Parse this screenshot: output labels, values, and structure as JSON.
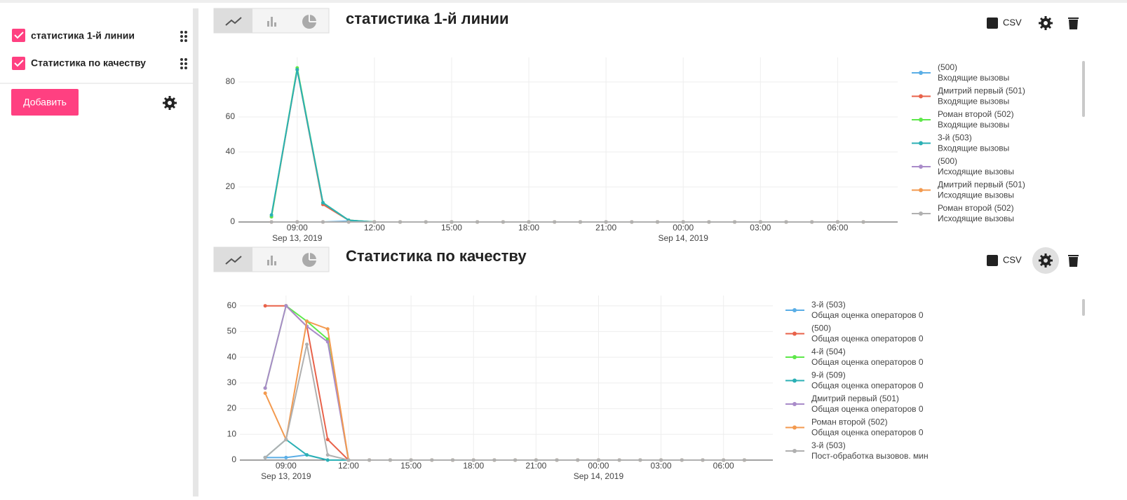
{
  "sidebar": {
    "items": [
      "статистика 1-й линии",
      "Статистика по качеству"
    ],
    "add_button": "Добавить"
  },
  "panels": [
    {
      "csv": "CSV"
    },
    {
      "csv": "CSV"
    }
  ],
  "chart_data": [
    {
      "type": "line",
      "title": "статистика 1-й линии",
      "x": [
        "2019-09-13T08:00",
        "2019-09-13T09:00",
        "2019-09-13T10:00",
        "2019-09-13T11:00",
        "2019-09-13T12:00",
        "2019-09-13T13:00",
        "2019-09-13T14:00",
        "2019-09-13T15:00",
        "2019-09-13T16:00",
        "2019-09-13T17:00",
        "2019-09-13T18:00",
        "2019-09-13T19:00",
        "2019-09-13T20:00",
        "2019-09-13T21:00",
        "2019-09-13T22:00",
        "2019-09-13T23:00",
        "2019-09-14T00:00",
        "2019-09-14T01:00",
        "2019-09-14T02:00",
        "2019-09-14T03:00",
        "2019-09-14T04:00",
        "2019-09-14T05:00",
        "2019-09-14T06:00",
        "2019-09-14T07:00"
      ],
      "xlim": [
        "2019-09-13T06:43",
        "2019-09-14T08:20"
      ],
      "xticks": [
        {
          "value": "2019-09-13T09:00",
          "label": "09:00"
        },
        {
          "value": "2019-09-13T12:00",
          "label": "12:00"
        },
        {
          "value": "2019-09-13T15:00",
          "label": "15:00"
        },
        {
          "value": "2019-09-13T18:00",
          "label": "18:00"
        },
        {
          "value": "2019-09-13T21:00",
          "label": "21:00"
        },
        {
          "value": "2019-09-14T00:00",
          "label": "00:00"
        },
        {
          "value": "2019-09-14T03:00",
          "label": "03:00"
        },
        {
          "value": "2019-09-14T06:00",
          "label": "06:00"
        }
      ],
      "xtick_dates": [
        {
          "value": "2019-09-13T09:00",
          "label": "Sep 13, 2019"
        },
        {
          "value": "2019-09-14T00:00",
          "label": "Sep 14, 2019"
        }
      ],
      "ylim": [
        0,
        94
      ],
      "yticks": [
        0,
        20,
        40,
        60,
        80
      ],
      "grid": true,
      "series": [
        {
          "name": "(500)",
          "metric": "Входящие вызовы",
          "color": "#5aaee6",
          "values": [
            0,
            0,
            0,
            0.5,
            0,
            0,
            0,
            0,
            0,
            0,
            0,
            0,
            0,
            0,
            0,
            0,
            0,
            0,
            0,
            0,
            0,
            0,
            0,
            0
          ]
        },
        {
          "name": "Дмитрий первый (501)",
          "metric": "Входящие вызовы",
          "color": "#e8624a",
          "values": [
            3,
            87,
            10,
            1,
            0,
            0,
            0,
            0,
            0,
            0,
            0,
            0,
            0,
            0,
            0,
            0,
            0,
            0,
            0,
            0,
            0,
            0,
            0,
            0
          ]
        },
        {
          "name": "Роман второй (502)",
          "metric": "Входящие вызовы",
          "color": "#5ee84a",
          "values": [
            3,
            88,
            11,
            1,
            0,
            0,
            0,
            0,
            0,
            0,
            0,
            0,
            0,
            0,
            0,
            0,
            0,
            0,
            0,
            0,
            0,
            0,
            0,
            0
          ]
        },
        {
          "name": "3-й (503)",
          "metric": "Входящие вызовы",
          "color": "#2bb0b5",
          "values": [
            4,
            87,
            11,
            1,
            0,
            0,
            0,
            0,
            0,
            0,
            0,
            0,
            0,
            0,
            0,
            0,
            0,
            0,
            0,
            0,
            0,
            0,
            0,
            0
          ]
        },
        {
          "name": "(500)",
          "metric": "Исходящие вызовы",
          "color": "#a98bc9",
          "values": [
            0,
            0,
            0,
            0,
            0,
            0,
            0,
            0,
            0,
            0,
            0,
            0,
            0,
            0,
            0,
            0,
            0,
            0,
            0,
            0,
            0,
            0,
            0,
            0
          ]
        },
        {
          "name": "Дмитрий первый (501)",
          "metric": "Исходящие вызовы",
          "color": "#f39a4f",
          "values": [
            0,
            0,
            0,
            0,
            0,
            0,
            0,
            0,
            0,
            0,
            0,
            0,
            0,
            0,
            0,
            0,
            0,
            0,
            0,
            0,
            0,
            0,
            0,
            0
          ]
        },
        {
          "name": "Роман второй (502)",
          "metric": "Исходящие вызовы",
          "color": "#b0b0b0",
          "values": [
            0,
            0,
            0,
            0,
            0,
            0,
            0,
            0,
            0,
            0,
            0,
            0,
            0,
            0,
            0,
            0,
            0,
            0,
            0,
            0,
            0,
            0,
            0,
            0
          ]
        }
      ]
    },
    {
      "type": "line",
      "title": "Статистика по качеству",
      "x": [
        "2019-09-13T08:00",
        "2019-09-13T09:00",
        "2019-09-13T10:00",
        "2019-09-13T11:00",
        "2019-09-13T12:00",
        "2019-09-13T13:00",
        "2019-09-13T14:00",
        "2019-09-13T15:00",
        "2019-09-13T16:00",
        "2019-09-13T17:00",
        "2019-09-13T18:00",
        "2019-09-13T19:00",
        "2019-09-13T20:00",
        "2019-09-13T21:00",
        "2019-09-13T22:00",
        "2019-09-13T23:00",
        "2019-09-14T00:00",
        "2019-09-14T01:00",
        "2019-09-14T02:00",
        "2019-09-14T03:00",
        "2019-09-14T04:00",
        "2019-09-14T05:00",
        "2019-09-14T06:00",
        "2019-09-14T07:00"
      ],
      "xlim": [
        "2019-09-13T06:47",
        "2019-09-14T08:22"
      ],
      "xticks": [
        {
          "value": "2019-09-13T09:00",
          "label": "09:00"
        },
        {
          "value": "2019-09-13T12:00",
          "label": "12:00"
        },
        {
          "value": "2019-09-13T15:00",
          "label": "15:00"
        },
        {
          "value": "2019-09-13T18:00",
          "label": "18:00"
        },
        {
          "value": "2019-09-13T21:00",
          "label": "21:00"
        },
        {
          "value": "2019-09-14T00:00",
          "label": "00:00"
        },
        {
          "value": "2019-09-14T03:00",
          "label": "03:00"
        },
        {
          "value": "2019-09-14T06:00",
          "label": "06:00"
        }
      ],
      "xtick_dates": [
        {
          "value": "2019-09-13T09:00",
          "label": "Sep 13, 2019"
        },
        {
          "value": "2019-09-14T00:00",
          "label": "Sep 14, 2019"
        }
      ],
      "ylim": [
        0,
        64
      ],
      "yticks": [
        0,
        10,
        20,
        30,
        40,
        50,
        60
      ],
      "grid": true,
      "series": [
        {
          "name": "3-й (503)",
          "metric": "Общая оценка операторов 0",
          "color": "#5aaee6",
          "values": [
            1,
            1,
            2,
            0,
            0,
            0,
            0,
            0,
            0,
            0,
            0,
            0,
            0,
            0,
            0,
            0,
            0,
            0,
            0,
            0,
            0,
            0,
            0,
            0
          ]
        },
        {
          "name": "(500)",
          "metric": "Общая оценка операторов 0",
          "color": "#e8624a",
          "values": [
            60,
            60,
            52,
            8,
            0,
            0,
            0,
            0,
            0,
            0,
            0,
            0,
            0,
            0,
            0,
            0,
            0,
            0,
            0,
            0,
            0,
            0,
            0,
            0
          ]
        },
        {
          "name": "4-й (504)",
          "metric": "Общая оценка операторов 0",
          "color": "#5ee84a",
          "values": [
            28,
            60,
            54,
            47,
            0,
            0,
            0,
            0,
            0,
            0,
            0,
            0,
            0,
            0,
            0,
            0,
            0,
            0,
            0,
            0,
            0,
            0,
            0,
            0
          ]
        },
        {
          "name": "9-й (509)",
          "metric": "Общая оценка операторов 0",
          "color": "#2bb0b5",
          "values": [
            1,
            8,
            2,
            0,
            0,
            0,
            0,
            0,
            0,
            0,
            0,
            0,
            0,
            0,
            0,
            0,
            0,
            0,
            0,
            0,
            0,
            0,
            0,
            0
          ]
        },
        {
          "name": "Дмитрий первый (501)",
          "metric": "Общая оценка операторов 0",
          "color": "#a98bc9",
          "values": [
            28,
            60,
            52,
            46,
            0,
            0,
            0,
            0,
            0,
            0,
            0,
            0,
            0,
            0,
            0,
            0,
            0,
            0,
            0,
            0,
            0,
            0,
            0,
            0
          ]
        },
        {
          "name": "Роман второй (502)",
          "metric": "Общая оценка операторов 0",
          "color": "#f39a4f",
          "values": [
            26,
            8,
            54,
            51,
            0,
            0,
            0,
            0,
            0,
            0,
            0,
            0,
            0,
            0,
            0,
            0,
            0,
            0,
            0,
            0,
            0,
            0,
            0,
            0
          ]
        },
        {
          "name": "3-й (503)",
          "metric": "Пост-обработка вызовов. мин",
          "color": "#b0b0b0",
          "values": [
            1,
            8,
            45,
            2,
            0,
            0,
            0,
            0,
            0,
            0,
            0,
            0,
            0,
            0,
            0,
            0,
            0,
            0,
            0,
            0,
            0,
            0,
            0,
            0
          ]
        }
      ]
    }
  ]
}
